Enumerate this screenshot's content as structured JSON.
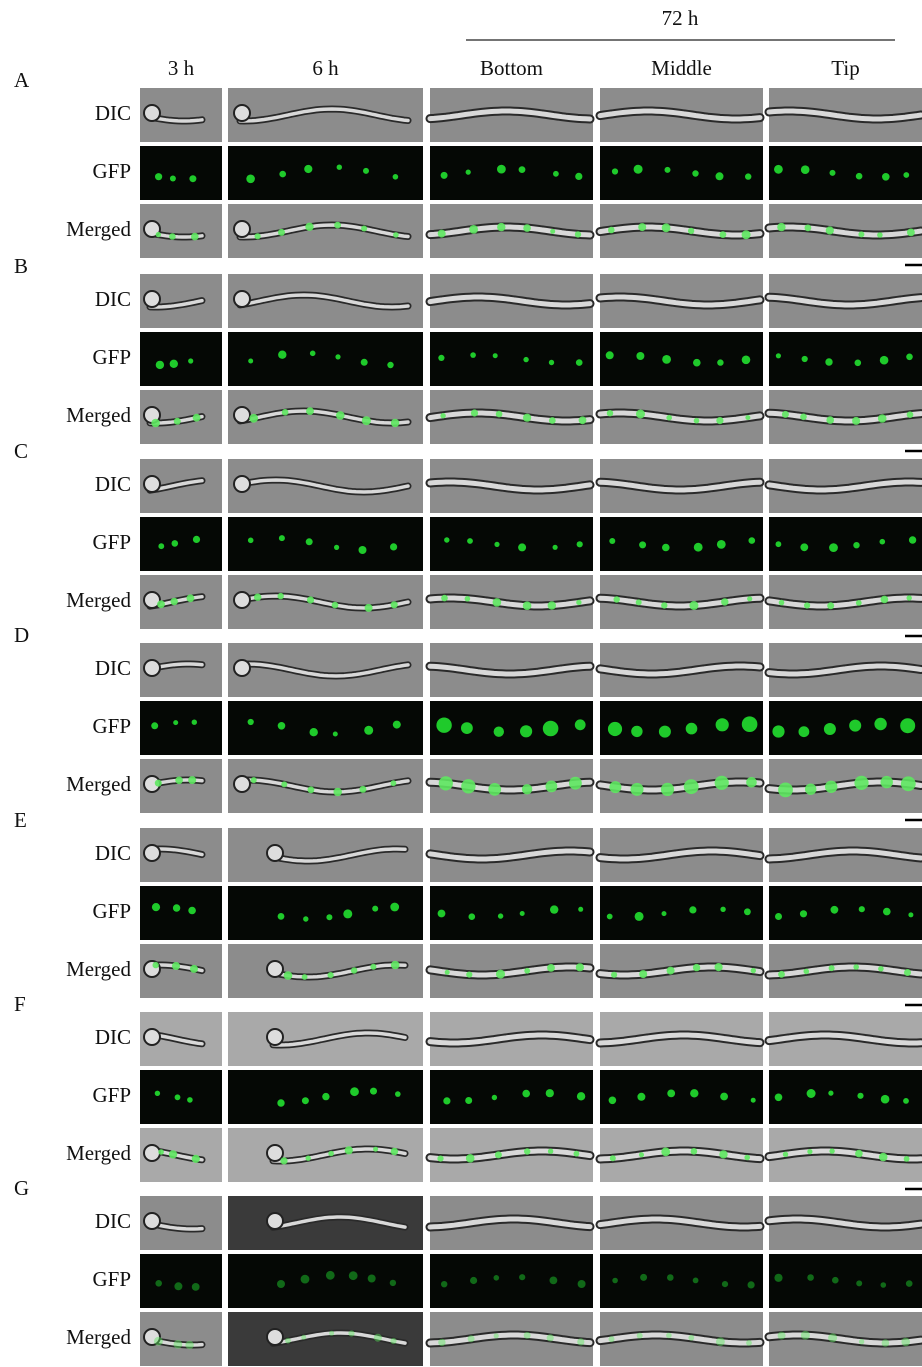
{
  "header": {
    "group_label": "72 h",
    "columns": [
      "3 h",
      "6 h",
      "Bottom",
      "Middle",
      "Tip"
    ]
  },
  "panels": [
    {
      "label": "A",
      "rows": [
        "DIC",
        "GFP",
        "Merged"
      ]
    },
    {
      "label": "B",
      "rows": [
        "DIC",
        "GFP",
        "Merged"
      ]
    },
    {
      "label": "C",
      "rows": [
        "DIC",
        "GFP",
        "Merged"
      ]
    },
    {
      "label": "D",
      "rows": [
        "DIC",
        "GFP",
        "Merged"
      ]
    },
    {
      "label": "E",
      "rows": [
        "DIC",
        "GFP",
        "Merged"
      ]
    },
    {
      "label": "F",
      "rows": [
        "DIC",
        "GFP",
        "Merged"
      ]
    },
    {
      "label": "G",
      "rows": [
        "DIC",
        "GFP",
        "Merged"
      ]
    }
  ]
}
